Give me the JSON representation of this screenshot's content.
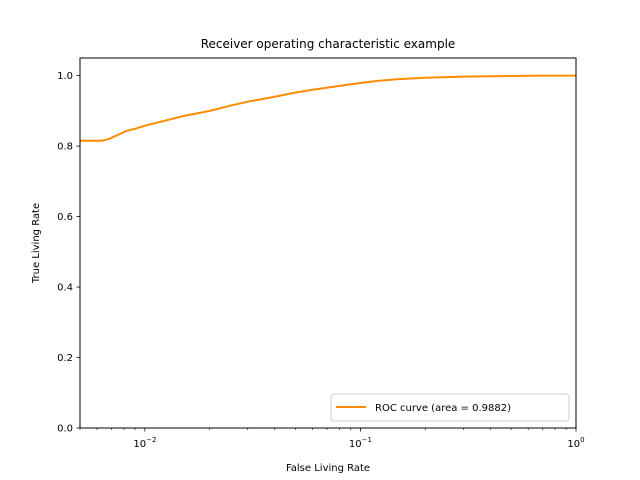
{
  "chart_data": {
    "type": "line",
    "title": "Receiver operating characteristic example",
    "xlabel": "False Living Rate",
    "ylabel": "True Living Rate",
    "xscale": "log",
    "xlim": [
      0.005,
      1.0
    ],
    "ylim": [
      0.0,
      1.05
    ],
    "grid": false,
    "legend_position": "lower-right",
    "x_ticks": [
      {
        "value": 0.01,
        "base": "10",
        "exp": "−2"
      },
      {
        "value": 0.1,
        "base": "10",
        "exp": "−1"
      },
      {
        "value": 1.0,
        "base": "10",
        "exp": "0"
      }
    ],
    "y_ticks": [
      {
        "value": 0.0,
        "label": "0.0"
      },
      {
        "value": 0.2,
        "label": "0.2"
      },
      {
        "value": 0.4,
        "label": "0.4"
      },
      {
        "value": 0.6,
        "label": "0.6"
      },
      {
        "value": 0.8,
        "label": "0.8"
      },
      {
        "value": 1.0,
        "label": "1.0"
      }
    ],
    "series": [
      {
        "name": "ROC curve (area = 0.9882)",
        "color": "#ff8c00",
        "x": [
          0.005,
          0.0063,
          0.0068,
          0.0072,
          0.0077,
          0.0082,
          0.009,
          0.01,
          0.012,
          0.015,
          0.02,
          0.025,
          0.03,
          0.04,
          0.05,
          0.06,
          0.08,
          0.1,
          0.12,
          0.15,
          0.2,
          0.3,
          0.5,
          0.7,
          1.0
        ],
        "y": [
          0.815,
          0.815,
          0.82,
          0.827,
          0.835,
          0.843,
          0.849,
          0.858,
          0.87,
          0.885,
          0.9,
          0.915,
          0.926,
          0.94,
          0.952,
          0.96,
          0.971,
          0.979,
          0.985,
          0.99,
          0.994,
          0.997,
          0.999,
          1.0,
          1.0
        ]
      }
    ]
  }
}
